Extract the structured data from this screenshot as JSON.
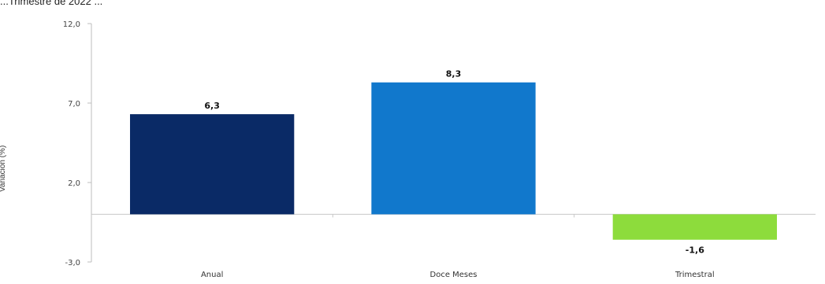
{
  "page": {
    "partial_title": "...Trimestre de 2022 ..."
  },
  "chart_data": {
    "type": "bar",
    "title": "",
    "xlabel": "",
    "ylabel": "Variación (%)",
    "ylim": [
      -3.0,
      12.0
    ],
    "y_ticks": [
      -3.0,
      2.0,
      7.0,
      12.0
    ],
    "y_tick_labels": [
      "-3,0",
      "2,0",
      "7,0",
      "12,0"
    ],
    "categories": [
      "Anual",
      "Doce Meses",
      "Trimestral"
    ],
    "values": [
      6.3,
      8.3,
      -1.6
    ],
    "value_labels": [
      "6,3",
      "8,3",
      "-1,6"
    ],
    "colors": [
      "#0a2a66",
      "#1178cc",
      "#8ddc3c"
    ],
    "grid": false,
    "legend": "none"
  }
}
